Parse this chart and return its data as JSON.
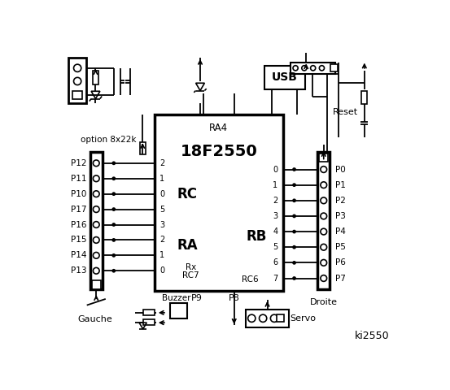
{
  "bg_color": "#ffffff",
  "chip_label": "18F2550",
  "chip_sublabel": "RA4",
  "left_labels": [
    "P12",
    "P11",
    "P10",
    "P17",
    "P16",
    "P15",
    "P14",
    "P13"
  ],
  "left_pin_labels": [
    "2",
    "1",
    "0",
    "5",
    "3",
    "2",
    "1",
    "0"
  ],
  "right_labels": [
    "P0",
    "P1",
    "P2",
    "P3",
    "P4",
    "P5",
    "P6",
    "P7"
  ],
  "right_pin_labels": [
    "0",
    "1",
    "2",
    "3",
    "4",
    "5",
    "6",
    "7"
  ],
  "corner_text": "ki2550",
  "gauche_label": "Gauche",
  "droite_label": "Droite",
  "buzzer_label": "Buzzer",
  "servo_label": "Servo",
  "usb_label": "USB",
  "reset_label": "Reset",
  "option_label": "option 8x22k",
  "p8_label": "P8",
  "p9_label": "P9",
  "rc_label": "RC",
  "ra_label": "RA",
  "rb_label": "RB",
  "rx_label": "Rx",
  "rc7_label": "RC7",
  "rc6_label": "RC6"
}
